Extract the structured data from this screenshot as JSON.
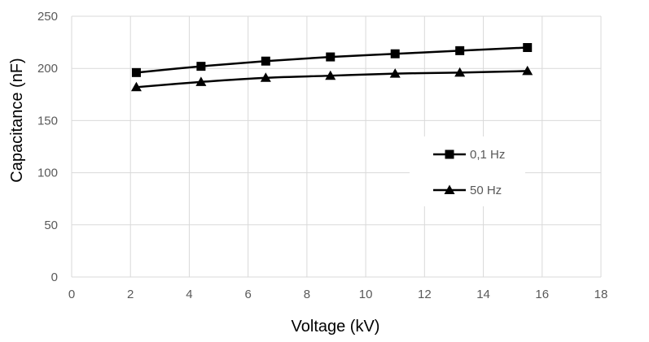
{
  "chart_data": {
    "type": "line",
    "title": "",
    "xlabel": "Voltage (kV)",
    "ylabel": "Capacitance (nF)",
    "xlim": [
      0,
      18
    ],
    "ylim": [
      0,
      250
    ],
    "x_ticks": [
      "0",
      "2",
      "4",
      "6",
      "8",
      "10",
      "12",
      "14",
      "16",
      "18"
    ],
    "y_ticks": [
      "0",
      "50",
      "100",
      "150",
      "200",
      "250"
    ],
    "grid": true,
    "legend_position": "right",
    "series": [
      {
        "name": "0,1 Hz",
        "marker": "square",
        "color": "#000000",
        "x": [
          2.2,
          4.4,
          6.6,
          8.8,
          11,
          13.2,
          15.5
        ],
        "y": [
          196,
          202,
          207,
          211,
          214,
          217,
          220
        ]
      },
      {
        "name": "50 Hz",
        "marker": "triangle",
        "color": "#000000",
        "x": [
          2.2,
          4.4,
          6.6,
          8.8,
          11,
          13.2,
          15.5
        ],
        "y": [
          182,
          187,
          191,
          193,
          195,
          196,
          197.5
        ]
      }
    ]
  }
}
